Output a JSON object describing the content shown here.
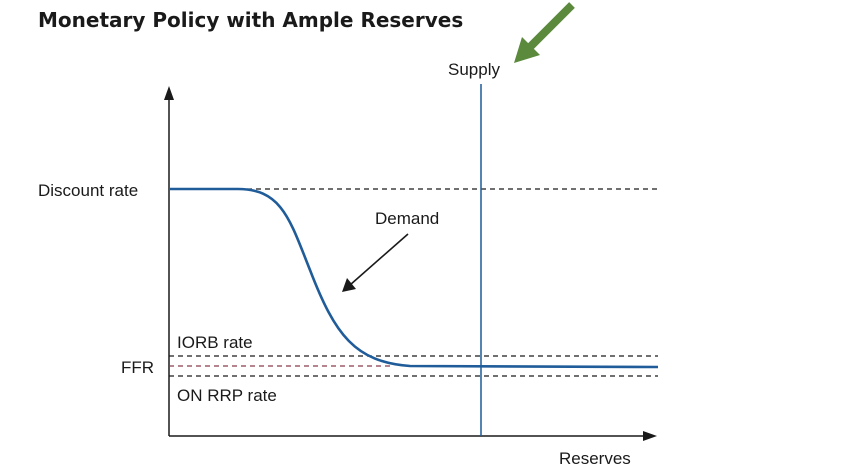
{
  "title": "Monetary Policy with Ample Reserves",
  "labels": {
    "supply": "Supply",
    "demand": "Demand",
    "discount_rate": "Discount rate",
    "iorb_rate": "IORB rate",
    "ffr": "FFR",
    "on_rrp_rate": "ON RRP rate",
    "x_axis": "Reserves"
  },
  "colors": {
    "demand_curve": "#1f5c99",
    "supply_line": "#1f5c99",
    "ffr_line": "#8b3a4a",
    "callout_arrow": "#5b8a3c",
    "text": "#1a1a1a"
  }
}
